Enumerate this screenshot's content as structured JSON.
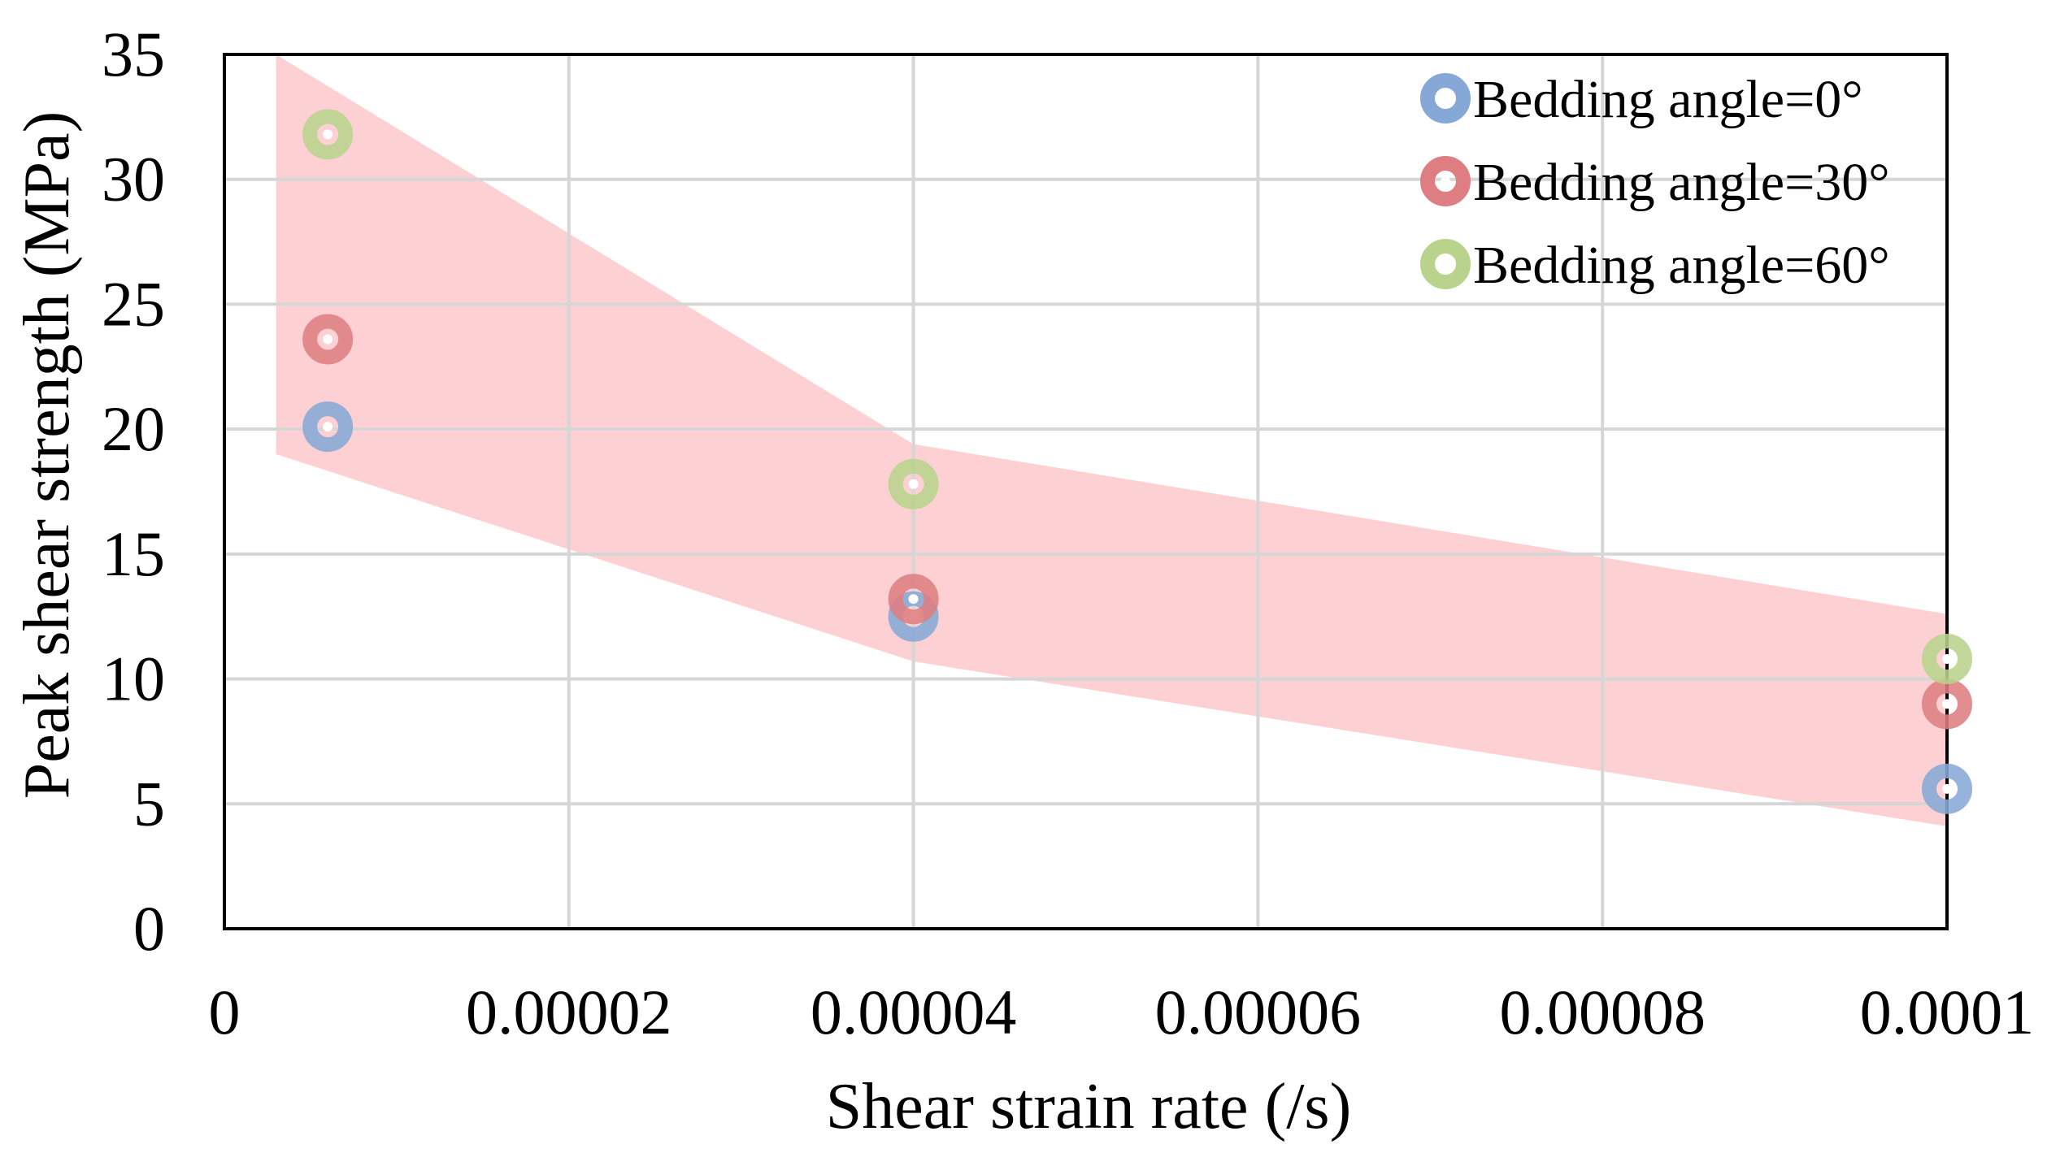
{
  "chart_data": {
    "type": "scatter",
    "title": "",
    "xlabel": "Shear strain rate (/s)",
    "ylabel": "Peak shear strength (MPa)",
    "xlim": [
      0,
      0.0001
    ],
    "ylim": [
      0,
      35
    ],
    "x_ticks": [
      0,
      2e-05,
      4e-05,
      6e-05,
      8e-05,
      0.0001
    ],
    "x_tick_labels": [
      "0",
      "0.00002",
      "0.00004",
      "0.00006",
      "0.00008",
      "0.0001"
    ],
    "y_ticks": [
      0,
      5,
      10,
      15,
      20,
      25,
      30,
      35
    ],
    "y_tick_labels": [
      "0",
      "5",
      "10",
      "15",
      "20",
      "25",
      "30",
      "35"
    ],
    "grid": true,
    "legend_position": "top-right",
    "band": {
      "color": "#fdc6c8",
      "upper": [
        [
          3e-06,
          35
        ],
        [
          4e-05,
          19.4
        ],
        [
          0.0001,
          12.6
        ]
      ],
      "lower": [
        [
          3e-06,
          19.0
        ],
        [
          4e-05,
          10.7
        ],
        [
          0.0001,
          4.1
        ]
      ]
    },
    "series": [
      {
        "name": "Bedding angle=0°",
        "color": "#86a8d6",
        "x": [
          6e-06,
          4e-05,
          0.0001
        ],
        "y": [
          20.1,
          12.5,
          5.6
        ]
      },
      {
        "name": "Bedding angle=30°",
        "color": "#de7e82",
        "x": [
          6e-06,
          4e-05,
          0.0001
        ],
        "y": [
          23.6,
          13.2,
          9.0
        ]
      },
      {
        "name": "Bedding angle=60°",
        "color": "#b9d38d",
        "x": [
          6e-06,
          4e-05,
          0.0001
        ],
        "y": [
          31.8,
          17.8,
          10.8
        ]
      }
    ]
  }
}
